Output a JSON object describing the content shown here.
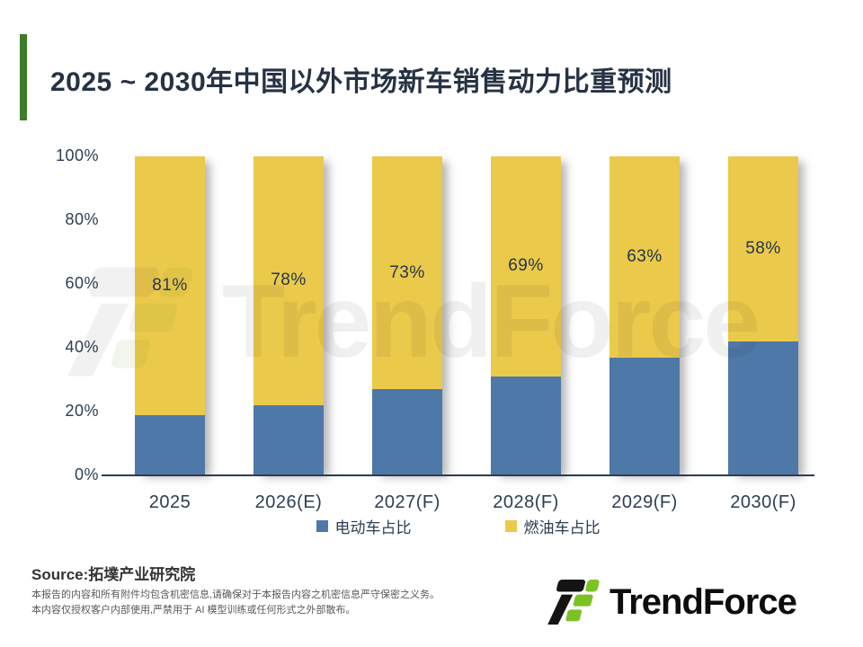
{
  "title": "2025 ~ 2030年中国以外市场新车销售动力比重预测",
  "accent_color": "#3E7C28",
  "chart_data": {
    "type": "bar",
    "stacked": true,
    "title": "2025 ~ 2030年中国以外市场新车销售动力比重预测",
    "categories": [
      "2025",
      "2026(E)",
      "2027(F)",
      "2028(F)",
      "2029(F)",
      "2030(F)"
    ],
    "series": [
      {
        "name": "电动车占比",
        "color": "#4E78A8",
        "values": [
          19,
          22,
          27,
          31,
          37,
          42
        ]
      },
      {
        "name": "燃油车占比",
        "color": "#EBC94A",
        "values": [
          81,
          78,
          73,
          69,
          63,
          58
        ]
      }
    ],
    "value_labels": [
      "81%",
      "78%",
      "73%",
      "69%",
      "63%",
      "58%"
    ],
    "xlabel": "",
    "ylabel": "",
    "ylim": [
      0,
      100
    ],
    "yticks": [
      "100%",
      "80%",
      "60%",
      "40%",
      "20%",
      "0%"
    ],
    "grid": false,
    "legend_position": "bottom"
  },
  "watermark": {
    "text": "TrendForce"
  },
  "footer": {
    "source": "Source:拓墣产业研究院",
    "disclaimer_line1": "本报告的内容和所有附件均包含机密信息,请确保对于本报告内容之机密信息严守保密之义务。",
    "disclaimer_line2": "本内容仅授权客户内部使用,严禁用于 AI 模型训练或任何形式之外部散布。",
    "logo_text": "TrendForce",
    "logo_green": "#7CC225",
    "logo_black": "#141414"
  }
}
